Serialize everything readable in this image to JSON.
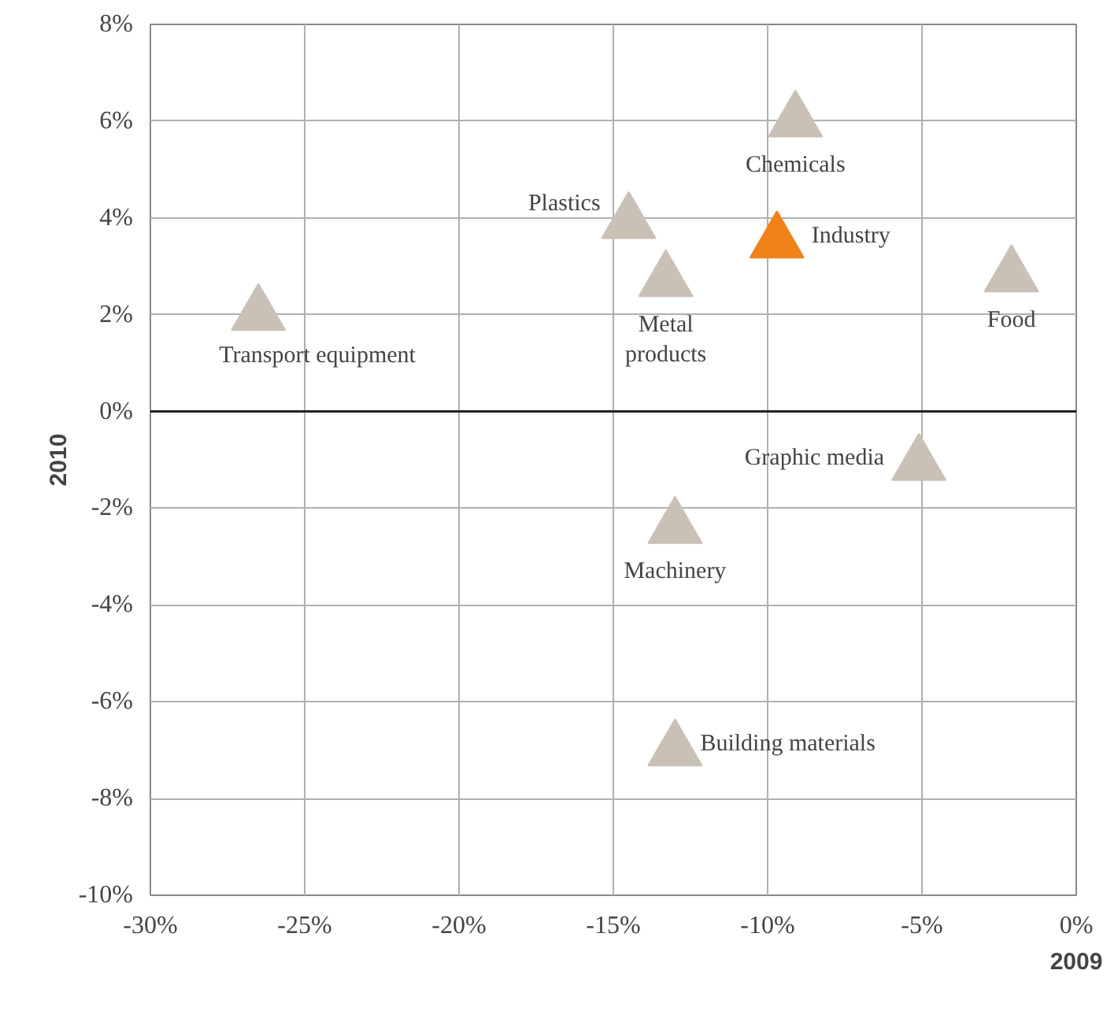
{
  "chart_data": {
    "type": "scatter",
    "xlabel": "2009",
    "ylabel": "2010",
    "x": [
      -26.5,
      -14.5,
      -13.3,
      -9.1,
      -9.7,
      -2.1,
      -5.1,
      -13.0,
      -13.0
    ],
    "values": [
      2.0,
      3.9,
      2.7,
      6.0,
      3.5,
      2.8,
      -1.1,
      -2.4,
      -7.0
    ],
    "colors": [
      "#c9c0b6",
      "#c9c0b6",
      "#c9c0b6",
      "#c9c0b6",
      "#f08219",
      "#c9c0b6",
      "#c9c0b6",
      "#c9c0b6",
      "#c9c0b6"
    ],
    "marker": "triangle",
    "grid": true,
    "xlim": [
      -30,
      0
    ],
    "ylim": [
      -10,
      8
    ],
    "xticks": [
      {
        "value": -30,
        "label": "-30%"
      },
      {
        "value": -25,
        "label": "-25%"
      },
      {
        "value": -20,
        "label": "-20%"
      },
      {
        "value": -15,
        "label": "-15%"
      },
      {
        "value": -10,
        "label": "-10%"
      },
      {
        "value": -5,
        "label": "-5%"
      },
      {
        "value": 0,
        "label": "0%"
      }
    ],
    "yticks": [
      {
        "value": -10,
        "label": "-10%"
      },
      {
        "value": -8,
        "label": "-8%"
      },
      {
        "value": -6,
        "label": "-6%"
      },
      {
        "value": -4,
        "label": "-4%"
      },
      {
        "value": -2,
        "label": "-2%"
      },
      {
        "value": 0,
        "label": "0%"
      },
      {
        "value": 2,
        "label": "2%"
      },
      {
        "value": 4,
        "label": "4%"
      },
      {
        "value": 6,
        "label": "6%"
      },
      {
        "value": 8,
        "label": "8%"
      }
    ],
    "ref_lines": [
      {
        "axis": "y",
        "value": 0,
        "color": "#222222"
      }
    ],
    "annotations": [
      "Transport equipment",
      "Plastics",
      "Metal\nproducts",
      "Chemicals",
      "Industry",
      "Food",
      "Graphic media",
      "Machinery",
      "Building materials"
    ]
  }
}
